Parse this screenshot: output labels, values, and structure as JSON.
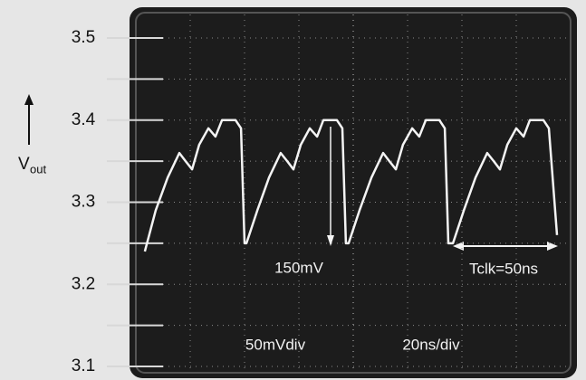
{
  "chart_data": {
    "type": "line",
    "ylabel": "V",
    "ylabel_sub": "out",
    "ylim": [
      3.1,
      3.5
    ],
    "yticks": [
      3.5,
      3.4,
      3.3,
      3.2,
      3.1
    ],
    "xlim": [
      0,
      160
    ],
    "grid": true,
    "annotations": [
      "150mV",
      "Tclk=50ns",
      "50mVdiv",
      "20ns/div"
    ],
    "series": [
      {
        "color": "#f4f4f4",
        "x": [
          3.3,
          7.3,
          11.7,
          16,
          18.3,
          20.7,
          23.3,
          26.7,
          29.3,
          31.7,
          36.7,
          38.7,
          40,
          40.7,
          44.7,
          49,
          53.3,
          55.7,
          58,
          60.7,
          64,
          66.7,
          69,
          74,
          76,
          77.3,
          78.3,
          82.3,
          86.7,
          91,
          93.3,
          95.7,
          98.3,
          101.7,
          104.3,
          106.7,
          111.7,
          113.7,
          115,
          116.7,
          120.7,
          125,
          129.3,
          131.7,
          134,
          136.7,
          140,
          142.7,
          145,
          150,
          152,
          155
        ],
        "values": [
          3.24,
          3.29,
          3.33,
          3.36,
          3.35,
          3.34,
          3.37,
          3.39,
          3.38,
          3.4,
          3.4,
          3.39,
          3.25,
          3.25,
          3.29,
          3.33,
          3.36,
          3.35,
          3.34,
          3.37,
          3.39,
          3.38,
          3.4,
          3.4,
          3.39,
          3.25,
          3.25,
          3.29,
          3.33,
          3.36,
          3.35,
          3.34,
          3.37,
          3.39,
          3.38,
          3.4,
          3.4,
          3.39,
          3.25,
          3.25,
          3.29,
          3.33,
          3.36,
          3.35,
          3.34,
          3.37,
          3.39,
          3.38,
          3.4,
          3.4,
          3.39,
          3.26
        ]
      }
    ]
  }
}
